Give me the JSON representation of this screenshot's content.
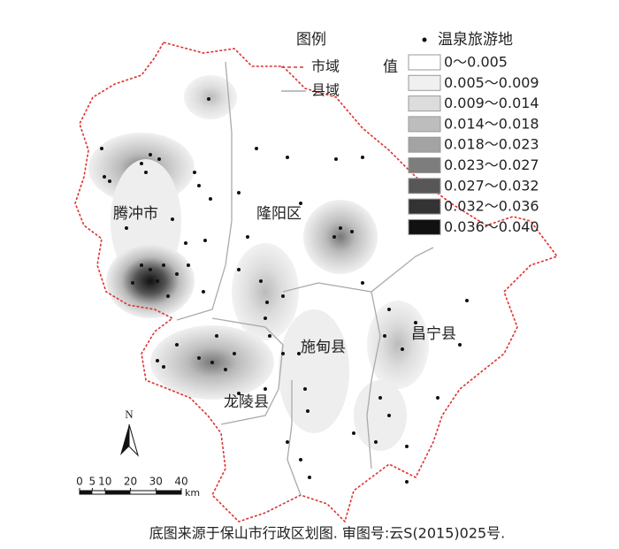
{
  "legend": {
    "title": "图例",
    "city_boundary": "市域",
    "county_boundary": "县域",
    "hot_spring": "温泉旅游地",
    "value_label": "值",
    "classes": [
      "0～0.005",
      "0.005～0.009",
      "0.009～0.014",
      "0.014～0.018",
      "0.018～0.023",
      "0.023～0.027",
      "0.027～0.032",
      "0.032～0.036",
      "0.036～0.040"
    ]
  },
  "places": [
    "腾冲市",
    "隆阳区",
    "施甸县",
    "昌宁县",
    "龙陵县"
  ],
  "north": "N",
  "scale_bar": {
    "ticks": [
      0,
      5,
      10,
      20,
      30,
      40
    ],
    "unit": "km"
  },
  "caption": "底图来源于保山市行政区划图. 审图号:云S(2015)025号."
}
